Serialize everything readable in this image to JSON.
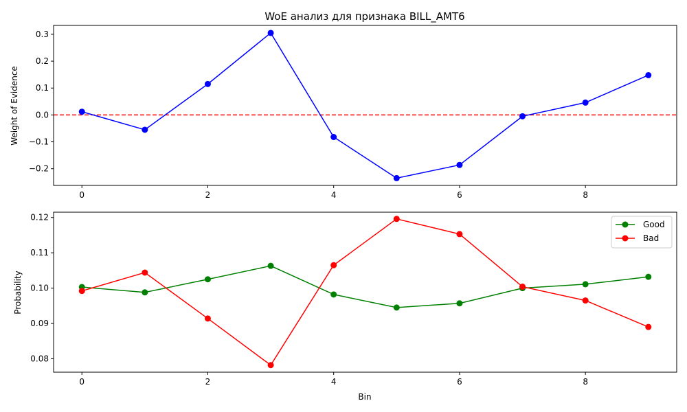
{
  "chart_data": [
    {
      "type": "line",
      "title": "WoE анализ для признака BILL_AMT6",
      "xlabel": "",
      "ylabel": "Weight of Evidence",
      "x": [
        0,
        1,
        2,
        3,
        4,
        5,
        6,
        7,
        8,
        9
      ],
      "series": [
        {
          "color": "#0000ff",
          "marker": "circle",
          "values": [
            0.012,
            -0.055,
            0.115,
            0.305,
            -0.082,
            -0.235,
            -0.186,
            -0.005,
            0.046,
            0.148
          ]
        }
      ],
      "reference_line": {
        "y": 0,
        "color": "#ff0000",
        "style": "dashed"
      },
      "xlim": [
        -0.45,
        9.45
      ],
      "ylim": [
        -0.262,
        0.333
      ],
      "xticks": [
        0,
        2,
        4,
        6,
        8
      ],
      "yticks": [
        -0.2,
        -0.1,
        0.0,
        0.1,
        0.2,
        0.3
      ],
      "xtick_labels": [
        "0",
        "2",
        "4",
        "6",
        "8"
      ],
      "ytick_labels": [
        "−0.2",
        "−0.1",
        "0.0",
        "0.1",
        "0.2",
        "0.3"
      ],
      "grid": false,
      "legend": null
    },
    {
      "type": "line",
      "title": "",
      "xlabel": "Bin",
      "ylabel": "Probability",
      "x": [
        0,
        1,
        2,
        3,
        4,
        5,
        6,
        7,
        8,
        9
      ],
      "series": [
        {
          "name": "Good",
          "color": "#008000",
          "marker": "circle",
          "values": [
            0.1003,
            0.0988,
            0.1025,
            0.1063,
            0.0982,
            0.0945,
            0.0957,
            0.1,
            0.1011,
            0.1032
          ]
        },
        {
          "name": "Bad",
          "color": "#ff0000",
          "marker": "circle",
          "values": [
            0.0992,
            0.1044,
            0.0914,
            0.0782,
            0.1065,
            0.1196,
            0.1153,
            0.1004,
            0.0965,
            0.089
          ]
        }
      ],
      "xlim": [
        -0.45,
        9.45
      ],
      "ylim": [
        0.0762,
        0.1215
      ],
      "xticks": [
        0,
        2,
        4,
        6,
        8
      ],
      "yticks": [
        0.08,
        0.09,
        0.1,
        0.11,
        0.12
      ],
      "xtick_labels": [
        "0",
        "2",
        "4",
        "6",
        "8"
      ],
      "ytick_labels": [
        "0.08",
        "0.09",
        "0.10",
        "0.11",
        "0.12"
      ],
      "grid": false,
      "legend": "top-right"
    }
  ]
}
